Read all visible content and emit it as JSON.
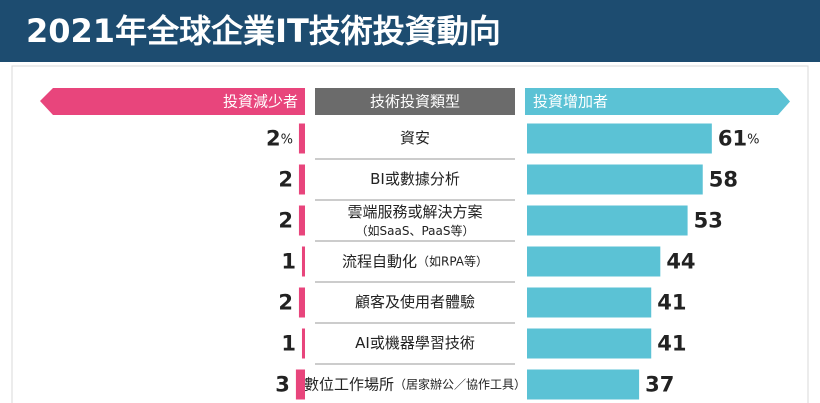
{
  "chart_data": {
    "type": "diverging-bar",
    "title": "2021年全球企業IT技術投資動向",
    "category_header": "技術投資類型",
    "categories": [
      "資安",
      "BI或數據分析",
      "雲端服務或解決方案",
      "流程自動化",
      "顧客及使用者體驗",
      "AI或機器學習技術",
      "數位工作場所"
    ],
    "category_notes": [
      null,
      null,
      "（如SaaS、PaaS等）",
      "（如RPA等）",
      null,
      null,
      "（居家辦公／協作工具）"
    ],
    "series": [
      {
        "name": "投資減少者",
        "color": "#e8457c",
        "values": [
          2,
          2,
          2,
          1,
          2,
          1,
          3
        ],
        "value_labels": [
          "2%",
          "2",
          "2",
          "1",
          "2",
          "1",
          "3"
        ]
      },
      {
        "name": "投資增加者",
        "color": "#5bc2d5",
        "values": [
          61,
          58,
          53,
          44,
          41,
          41,
          37
        ],
        "value_labels": [
          "61%",
          "58",
          "53",
          "44",
          "41",
          "41",
          "37"
        ]
      }
    ]
  }
}
